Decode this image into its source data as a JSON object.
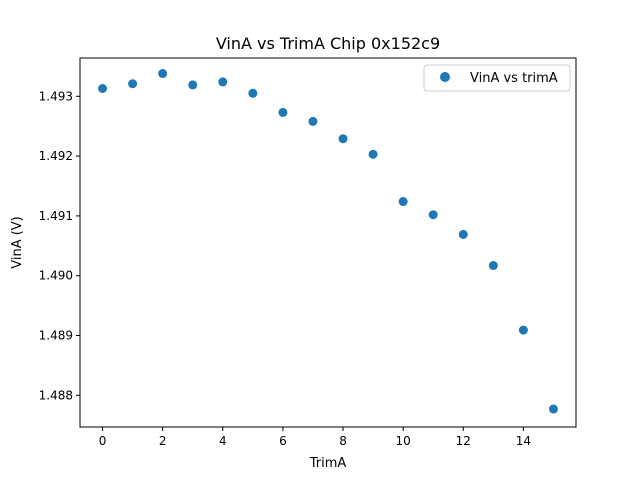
{
  "chart_data": {
    "type": "scatter",
    "title": "VinA vs TrimA Chip 0x152c9",
    "xlabel": "TrimA",
    "ylabel": "VinA (V)",
    "xlim": [
      -0.75,
      15.75
    ],
    "ylim": [
      1.48747,
      1.49364
    ],
    "xticks": [
      0,
      2,
      4,
      6,
      8,
      10,
      12,
      14
    ],
    "xtick_labels": [
      "0",
      "2",
      "4",
      "6",
      "8",
      "10",
      "12",
      "14"
    ],
    "yticks": [
      1.488,
      1.489,
      1.49,
      1.491,
      1.492,
      1.493
    ],
    "ytick_labels": [
      "1.488",
      "1.489",
      "1.490",
      "1.491",
      "1.492",
      "1.493"
    ],
    "grid": false,
    "legend_position": "top-right",
    "series": [
      {
        "name": "VinA vs trimA",
        "color": "#1f77b4",
        "marker": "circle",
        "x": [
          0,
          1,
          2,
          3,
          4,
          5,
          6,
          7,
          8,
          9,
          10,
          11,
          12,
          13,
          14,
          15
        ],
        "y": [
          1.49313,
          1.49321,
          1.49338,
          1.49319,
          1.49324,
          1.49305,
          1.49273,
          1.49258,
          1.49229,
          1.49203,
          1.49124,
          1.49102,
          1.49069,
          1.49017,
          1.48909,
          1.48777
        ]
      }
    ]
  }
}
